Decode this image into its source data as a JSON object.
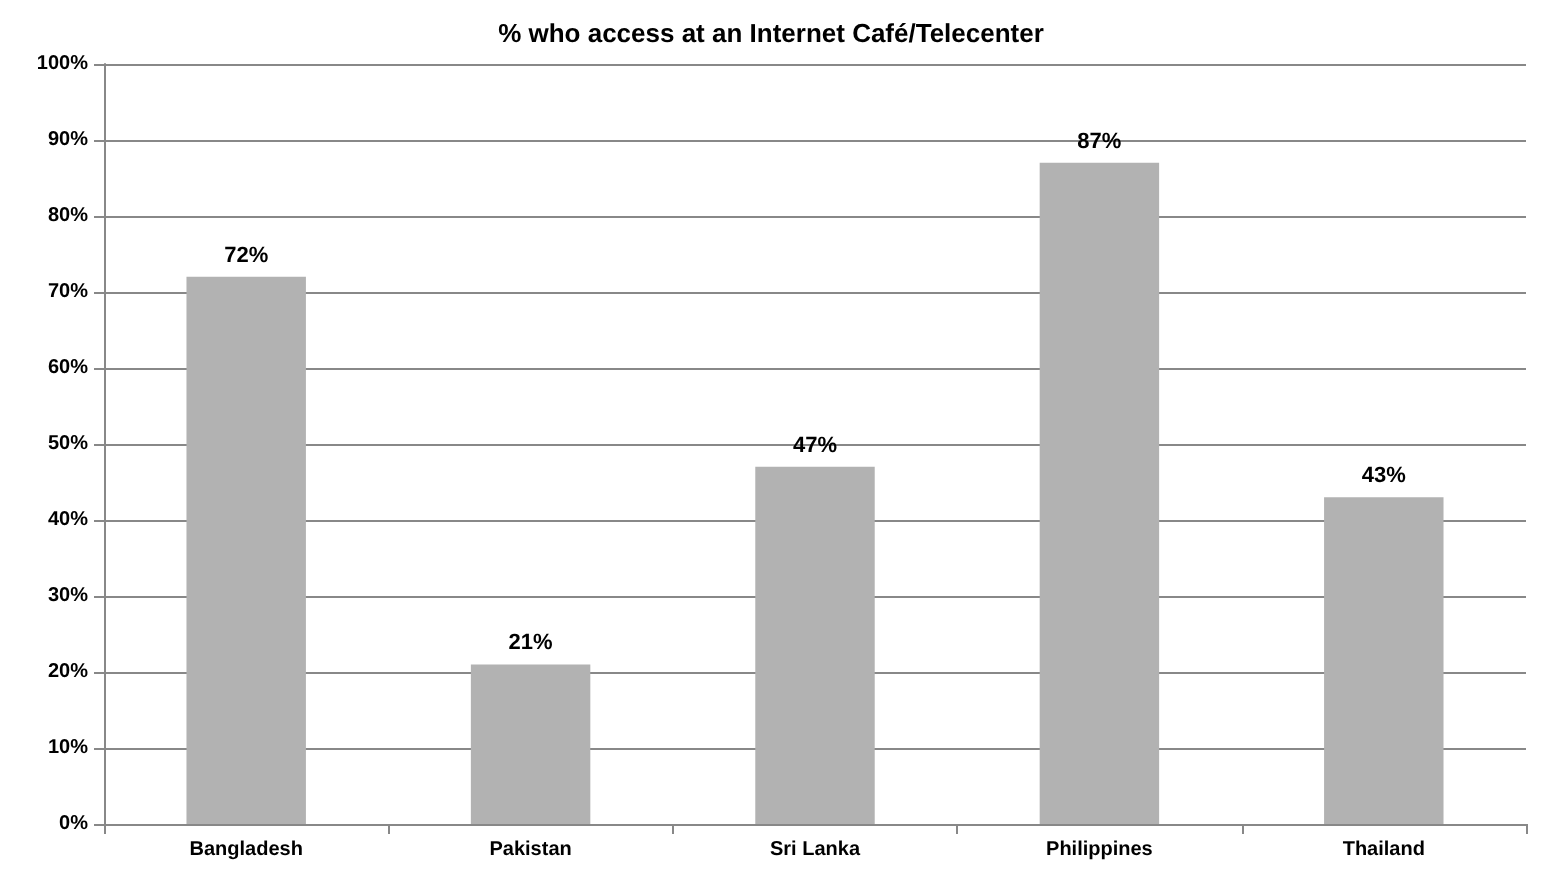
{
  "chart_data": {
    "type": "bar",
    "title": "% who access at an Internet Café/Telecenter",
    "categories": [
      "Bangladesh",
      "Pakistan",
      "Sri Lanka",
      "Philippines",
      "Thailand"
    ],
    "values": [
      72,
      21,
      47,
      87,
      43
    ],
    "color": "#b2b2b2",
    "value_labels": [
      "72%",
      "21%",
      "47%",
      "87%",
      "43%"
    ],
    "ylim": [
      0,
      100
    ],
    "yticks": [
      {
        "value": 0,
        "label": "0%"
      },
      {
        "value": 10,
        "label": "10%"
      },
      {
        "value": 20,
        "label": "20%"
      },
      {
        "value": 30,
        "label": "30%"
      },
      {
        "value": 40,
        "label": "40%"
      },
      {
        "value": 50,
        "label": "50%"
      },
      {
        "value": 60,
        "label": "60%"
      },
      {
        "value": 70,
        "label": "70%"
      },
      {
        "value": 80,
        "label": "80%"
      },
      {
        "value": 90,
        "label": "90%"
      },
      {
        "value": 100,
        "label": "100%"
      }
    ],
    "grid": "y"
  }
}
